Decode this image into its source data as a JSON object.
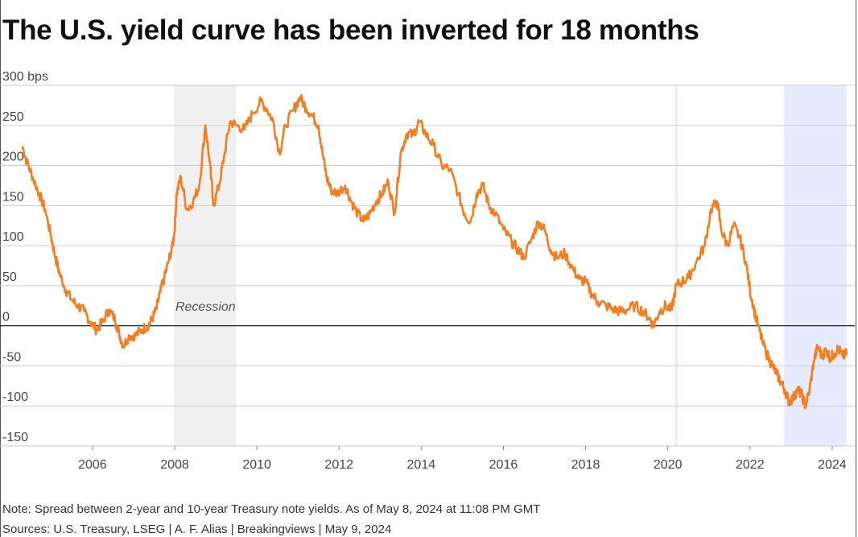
{
  "title": "The U.S. yield curve has been inverted for 18 months",
  "note": "Note: Spread between 2-year and 10-year Treasury note yields. As of May 8, 2024 at 11:08 PM GMT",
  "source": "Sources: U.S. Treasury, LSEG | A. F. Alias | Breakingviews | May 9, 2024",
  "colors": {
    "line": "#f57d1f",
    "recession_band": "#f0f0f0",
    "inversion_band": "#e6ecfd",
    "grid": "#cccccc",
    "zero_line": "#000000"
  },
  "chart_data": {
    "type": "line",
    "title": "The U.S. yield curve has been inverted for 18 months",
    "xlabel": "",
    "ylabel": "",
    "ylim": [
      -150,
      300
    ],
    "xlim": [
      2003.75,
      2024.55
    ],
    "grid": true,
    "y_ticks": [
      300,
      250,
      200,
      150,
      100,
      50,
      0,
      -50,
      -100,
      -150
    ],
    "y_tick_labels": [
      "300 bps",
      "250",
      "200",
      "150",
      "100",
      "50",
      "0",
      "-50",
      "-100",
      "-150"
    ],
    "x_ticks": [
      2006,
      2008,
      2010,
      2012,
      2014,
      2016,
      2018,
      2020,
      2022,
      2024
    ],
    "x_tick_labels": [
      "2006",
      "2008",
      "2010",
      "2012",
      "2014",
      "2016",
      "2018",
      "2020",
      "2022",
      "2024"
    ],
    "shaded_periods": [
      {
        "label": "Recession",
        "start": 2007.98,
        "end": 2009.5,
        "kind": "recession"
      },
      {
        "label": "",
        "start": 2020.17,
        "end": 2020.25,
        "kind": "recession"
      },
      {
        "label": "",
        "start": 2022.83,
        "end": 2024.35,
        "kind": "inversion"
      }
    ],
    "series": [
      {
        "x": [
          2004.3,
          2004.4,
          2004.55,
          2004.7,
          2004.85,
          2005.0,
          2005.1,
          2005.2,
          2005.35,
          2005.5,
          2005.65,
          2005.8,
          2005.95,
          2006.1,
          2006.25,
          2006.4,
          2006.55,
          2006.65,
          2006.75,
          2006.9,
          2007.05,
          2007.2,
          2007.35,
          2007.45,
          2007.55,
          2007.65,
          2007.75,
          2007.85,
          2007.95,
          2008.0,
          2008.05,
          2008.15,
          2008.3,
          2008.45,
          2008.6,
          2008.75,
          2008.85,
          2008.95,
          2009.1,
          2009.2,
          2009.35,
          2009.5,
          2009.7,
          2009.9,
          2010.1,
          2010.25,
          2010.4,
          2010.55,
          2010.7,
          2010.9,
          2011.05,
          2011.2,
          2011.35,
          2011.5,
          2011.6,
          2011.7,
          2011.8,
          2011.95,
          2012.15,
          2012.3,
          2012.45,
          2012.6,
          2012.75,
          2012.9,
          2013.05,
          2013.2,
          2013.35,
          2013.5,
          2013.65,
          2013.8,
          2013.95,
          2014.1,
          2014.3,
          2014.5,
          2014.7,
          2014.9,
          2015.05,
          2015.2,
          2015.35,
          2015.5,
          2015.65,
          2015.8,
          2016.0,
          2016.2,
          2016.35,
          2016.5,
          2016.7,
          2016.85,
          2017.0,
          2017.15,
          2017.3,
          2017.5,
          2017.7,
          2017.85,
          2018.0,
          2018.15,
          2018.3,
          2018.5,
          2018.7,
          2018.85,
          2019.0,
          2019.2,
          2019.4,
          2019.55,
          2019.65,
          2019.8,
          2019.95,
          2020.1,
          2020.2,
          2020.35,
          2020.5,
          2020.7,
          2020.9,
          2021.05,
          2021.2,
          2021.3,
          2021.45,
          2021.6,
          2021.75,
          2021.9,
          2022.0,
          2022.1,
          2022.2,
          2022.3,
          2022.45,
          2022.55,
          2022.65,
          2022.75,
          2022.85,
          2022.95,
          2023.05,
          2023.15,
          2023.25,
          2023.35,
          2023.45,
          2023.55,
          2023.65,
          2023.75,
          2023.85,
          2023.95,
          2024.05,
          2024.15,
          2024.25,
          2024.35
        ],
        "values": [
          223,
          205,
          185,
          165,
          145,
          110,
          85,
          65,
          45,
          32,
          25,
          18,
          5,
          -5,
          5,
          20,
          8,
          -10,
          -25,
          -12,
          -12,
          -5,
          0,
          8,
          20,
          42,
          60,
          80,
          100,
          120,
          165,
          185,
          145,
          155,
          175,
          250,
          205,
          150,
          180,
          210,
          255,
          250,
          245,
          265,
          280,
          270,
          255,
          215,
          250,
          270,
          285,
          272,
          262,
          250,
          215,
          185,
          170,
          165,
          175,
          155,
          140,
          130,
          140,
          155,
          165,
          180,
          140,
          215,
          240,
          238,
          255,
          240,
          225,
          200,
          195,
          165,
          140,
          130,
          165,
          175,
          150,
          140,
          120,
          105,
          95,
          85,
          110,
          130,
          120,
          95,
          85,
          90,
          70,
          58,
          55,
          40,
          30,
          25,
          20,
          18,
          20,
          25,
          18,
          10,
          0,
          18,
          25,
          20,
          50,
          55,
          60,
          80,
          100,
          145,
          155,
          120,
          100,
          125,
          110,
          80,
          45,
          20,
          0,
          -20,
          -40,
          -50,
          -60,
          -70,
          -80,
          -95,
          -90,
          -80,
          -85,
          -100,
          -80,
          -45,
          -25,
          -38,
          -30,
          -40,
          -35,
          -28,
          -38,
          -35
        ]
      }
    ]
  }
}
